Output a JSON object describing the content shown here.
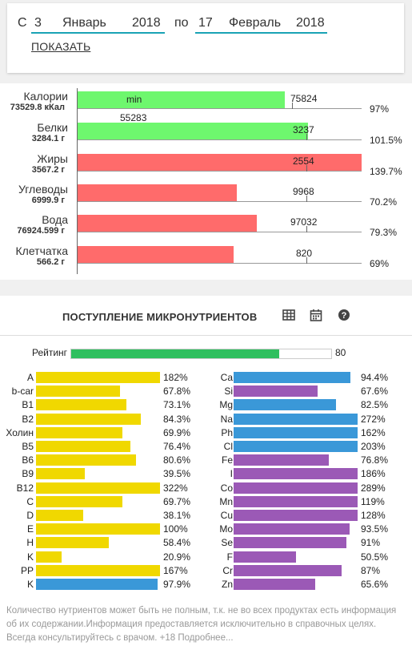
{
  "date_range": {
    "from_label": "С",
    "from_day": "3",
    "from_month": "Январь",
    "from_year": "2018",
    "to_label": "по",
    "to_day": "17",
    "to_month": "Февраль",
    "to_year": "2018",
    "show_button": "ПОКАЗАТЬ"
  },
  "macros": [
    {
      "name": "Калории",
      "total": "73529.8 кКал",
      "bar_fraction": 0.73,
      "color": "#6ef76e",
      "bar_value": "75824",
      "pct": "97%",
      "min_label": "min",
      "sub_value": "55283"
    },
    {
      "name": "Белки",
      "total": "3284.1 г",
      "bar_fraction": 0.81,
      "color": "#6ef76e",
      "bar_value": "3237",
      "pct": "101.5%"
    },
    {
      "name": "Жиры",
      "total": "3567.2 г",
      "bar_fraction": 1.0,
      "color": "#ff6b6b",
      "bar_value": "2554",
      "pct": "139.7%"
    },
    {
      "name": "Углеводы",
      "total": "6999.9 г",
      "bar_fraction": 0.56,
      "color": "#ff6b6b",
      "bar_value": "9968",
      "pct": "70.2%"
    },
    {
      "name": "Вода",
      "total": "76924.599 г",
      "bar_fraction": 0.63,
      "color": "#ff6b6b",
      "bar_value": "97032",
      "pct": "79.3%"
    },
    {
      "name": "Клетчатка",
      "total": "566.2 г",
      "bar_fraction": 0.55,
      "color": "#ff6b6b",
      "bar_value": "820",
      "pct": "69%"
    }
  ],
  "micro": {
    "title": "ПОСТУПЛЕНИЕ МИКРОНУТРИЕНТОВ",
    "icons": [
      "table-icon",
      "calendar-icon",
      "help-icon"
    ],
    "rating_label": "Рейтинг",
    "rating_value": "80",
    "rating_fraction": 0.8,
    "left": [
      {
        "name": "A",
        "pct_value": 182,
        "pct": "182%",
        "color": "#f0d800"
      },
      {
        "name": "b-car",
        "pct_value": 67.8,
        "pct": "67.8%",
        "color": "#f0d800"
      },
      {
        "name": "B1",
        "pct_value": 73.1,
        "pct": "73.1%",
        "color": "#f0d800"
      },
      {
        "name": "B2",
        "pct_value": 84.3,
        "pct": "84.3%",
        "color": "#f0d800"
      },
      {
        "name": "Холин",
        "pct_value": 69.9,
        "pct": "69.9%",
        "color": "#f0d800"
      },
      {
        "name": "B5",
        "pct_value": 76.4,
        "pct": "76.4%",
        "color": "#f0d800"
      },
      {
        "name": "B6",
        "pct_value": 80.6,
        "pct": "80.6%",
        "color": "#f0d800"
      },
      {
        "name": "B9",
        "pct_value": 39.5,
        "pct": "39.5%",
        "color": "#f0d800"
      },
      {
        "name": "B12",
        "pct_value": 322,
        "pct": "322%",
        "color": "#f0d800"
      },
      {
        "name": "C",
        "pct_value": 69.7,
        "pct": "69.7%",
        "color": "#f0d800"
      },
      {
        "name": "D",
        "pct_value": 38.1,
        "pct": "38.1%",
        "color": "#f0d800"
      },
      {
        "name": "E",
        "pct_value": 100,
        "pct": "100%",
        "color": "#f0d800"
      },
      {
        "name": "H",
        "pct_value": 58.4,
        "pct": "58.4%",
        "color": "#f0d800"
      },
      {
        "name": "K",
        "pct_value": 20.9,
        "pct": "20.9%",
        "color": "#f0d800"
      },
      {
        "name": "PP",
        "pct_value": 167,
        "pct": "167%",
        "color": "#f0d800"
      },
      {
        "name": "K",
        "pct_value": 97.9,
        "pct": "97.9%",
        "color": "#3a98d8"
      }
    ],
    "right": [
      {
        "name": "Ca",
        "pct_value": 94.4,
        "pct": "94.4%",
        "color": "#3a98d8"
      },
      {
        "name": "Si",
        "pct_value": 67.6,
        "pct": "67.6%",
        "color": "#9b59b6"
      },
      {
        "name": "Mg",
        "pct_value": 82.5,
        "pct": "82.5%",
        "color": "#3a98d8"
      },
      {
        "name": "Na",
        "pct_value": 272,
        "pct": "272%",
        "color": "#3a98d8"
      },
      {
        "name": "Ph",
        "pct_value": 162,
        "pct": "162%",
        "color": "#3a98d8"
      },
      {
        "name": "Cl",
        "pct_value": 203,
        "pct": "203%",
        "color": "#3a98d8"
      },
      {
        "name": "Fe",
        "pct_value": 76.8,
        "pct": "76.8%",
        "color": "#9b59b6"
      },
      {
        "name": "I",
        "pct_value": 186,
        "pct": "186%",
        "color": "#9b59b6"
      },
      {
        "name": "Co",
        "pct_value": 289,
        "pct": "289%",
        "color": "#9b59b6"
      },
      {
        "name": "Mn",
        "pct_value": 119,
        "pct": "119%",
        "color": "#9b59b6"
      },
      {
        "name": "Cu",
        "pct_value": 128,
        "pct": "128%",
        "color": "#9b59b6"
      },
      {
        "name": "Mo",
        "pct_value": 93.5,
        "pct": "93.5%",
        "color": "#9b59b6"
      },
      {
        "name": "Se",
        "pct_value": 91,
        "pct": "91%",
        "color": "#9b59b6"
      },
      {
        "name": "F",
        "pct_value": 50.5,
        "pct": "50.5%",
        "color": "#9b59b6"
      },
      {
        "name": "Cr",
        "pct_value": 87,
        "pct": "87%",
        "color": "#9b59b6"
      },
      {
        "name": "Zn",
        "pct_value": 65.6,
        "pct": "65.6%",
        "color": "#9b59b6"
      }
    ]
  },
  "disclaimer": "Количество нутриентов может быть не полным, т.к. не во всех продуктах есть информация об их содержании.Информация предоставляется исключительно в справочных целях. Всегда консультируйтесь с врачом. +18 Подробнее..."
}
